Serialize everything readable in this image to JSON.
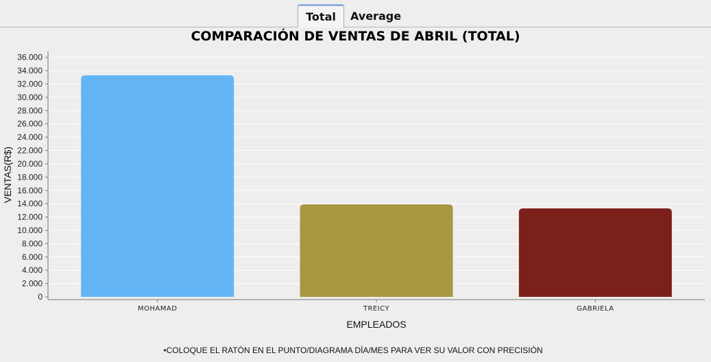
{
  "tabs": [
    {
      "label": "Total",
      "active": true
    },
    {
      "label": "Average",
      "active": false
    }
  ],
  "hint": "•COLOQUE EL RATÓN EN EL PUNTO/DIAGRAMA DÍA/MES PARA VER SU VALOR CON PRECISIÓN",
  "chart_data": {
    "type": "bar",
    "title": "COMPARACIÓN DE VENTAS DE ABRIL (TOTAL)",
    "xlabel": "EMPLEADOS",
    "ylabel": "VENTAS(R$)",
    "categories": [
      "MOHAMAD",
      "TREICY",
      "GABRIELA"
    ],
    "values": [
      33300,
      13900,
      13300
    ],
    "colors": [
      "#64b5f6",
      "#a89840",
      "#7b201b"
    ],
    "ylim": [
      0,
      37000
    ],
    "yticks": [
      0,
      2000,
      4000,
      6000,
      8000,
      10000,
      12000,
      14000,
      16000,
      18000,
      20000,
      22000,
      24000,
      26000,
      28000,
      30000,
      32000,
      34000,
      36000
    ],
    "ytick_labels": [
      "0",
      "2.000",
      "4.000",
      "6.000",
      "8.000",
      "10.000",
      "12.000",
      "14.000",
      "16.000",
      "18.000",
      "20.000",
      "22.000",
      "24.000",
      "26.000",
      "28.000",
      "30.000",
      "32.000",
      "34.000",
      "36.000"
    ],
    "grid": true,
    "legend": "none"
  }
}
